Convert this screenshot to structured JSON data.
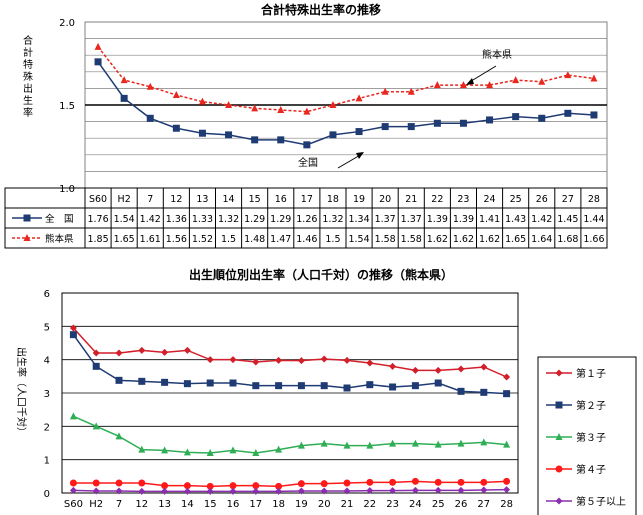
{
  "chart_data": [
    {
      "type": "line",
      "title": "合計特殊出生率の推移",
      "ylabel": "合計特殊出生率",
      "ylim": [
        1.0,
        2.0
      ],
      "yticks": [
        "1.0",
        "1.5",
        "2.0"
      ],
      "categories": [
        "S60",
        "H2",
        "7",
        "12",
        "13",
        "14",
        "15",
        "16",
        "17",
        "18",
        "19",
        "20",
        "21",
        "22",
        "23",
        "24",
        "25",
        "26",
        "27",
        "28"
      ],
      "series": [
        {
          "name": "全　国",
          "color": "#1f3b73",
          "style": "solid",
          "marker": "square",
          "values": [
            1.76,
            1.54,
            1.42,
            1.36,
            1.33,
            1.32,
            1.29,
            1.29,
            1.26,
            1.32,
            1.34,
            1.37,
            1.37,
            1.39,
            1.39,
            1.41,
            1.43,
            1.42,
            1.45,
            1.44
          ]
        },
        {
          "name": "熊本県",
          "color": "#e8271f",
          "style": "dashed",
          "marker": "triangle",
          "values": [
            1.85,
            1.65,
            1.61,
            1.56,
            1.52,
            1.5,
            1.48,
            1.47,
            1.46,
            1.5,
            1.54,
            1.58,
            1.58,
            1.62,
            1.62,
            1.62,
            1.65,
            1.64,
            1.68,
            1.66
          ]
        }
      ],
      "annotations": [
        "熊本県",
        "全国"
      ],
      "table": true,
      "grid": true
    },
    {
      "type": "line",
      "title": "出生順位別出生率（人口千対）の推移（熊本県）",
      "ylabel": "出生率（人口千対）",
      "ylim": [
        0,
        6
      ],
      "yticks": [
        "0",
        "1",
        "2",
        "3",
        "4",
        "5",
        "6"
      ],
      "categories": [
        "S60",
        "H2",
        "7",
        "12",
        "13",
        "14",
        "15",
        "16",
        "17",
        "18",
        "19",
        "20",
        "21",
        "22",
        "23",
        "24",
        "25",
        "26",
        "27",
        "28"
      ],
      "legend_position": "right",
      "series": [
        {
          "name": "第１子",
          "color": "#d21f2a",
          "marker": "diamond",
          "values": [
            4.95,
            4.2,
            4.2,
            4.28,
            4.22,
            4.28,
            4.0,
            4.0,
            3.93,
            3.98,
            3.97,
            4.02,
            3.98,
            3.9,
            3.8,
            3.68,
            3.68,
            3.72,
            3.78,
            3.48
          ]
        },
        {
          "name": "第２子",
          "color": "#1f3b73",
          "marker": "square",
          "values": [
            4.75,
            3.8,
            3.38,
            3.35,
            3.32,
            3.28,
            3.3,
            3.3,
            3.22,
            3.22,
            3.22,
            3.22,
            3.15,
            3.25,
            3.18,
            3.22,
            3.3,
            3.05,
            3.02,
            2.98
          ]
        },
        {
          "name": "第３子",
          "color": "#2fae55",
          "marker": "triangle",
          "values": [
            2.3,
            2.0,
            1.7,
            1.3,
            1.28,
            1.22,
            1.2,
            1.28,
            1.2,
            1.3,
            1.42,
            1.48,
            1.42,
            1.42,
            1.48,
            1.48,
            1.45,
            1.48,
            1.52,
            1.45
          ]
        },
        {
          "name": "第４子",
          "color": "#ff1a1a",
          "marker": "circle",
          "values": [
            0.3,
            0.3,
            0.3,
            0.3,
            0.22,
            0.22,
            0.2,
            0.22,
            0.22,
            0.2,
            0.28,
            0.28,
            0.3,
            0.32,
            0.32,
            0.35,
            0.32,
            0.32,
            0.32,
            0.35
          ]
        },
        {
          "name": "第５子以上",
          "color": "#8a2fae",
          "marker": "diamond",
          "values": [
            0.08,
            0.06,
            0.06,
            0.05,
            0.05,
            0.05,
            0.05,
            0.05,
            0.05,
            0.05,
            0.06,
            0.06,
            0.06,
            0.07,
            0.07,
            0.08,
            0.08,
            0.08,
            0.09,
            0.1
          ]
        }
      ],
      "grid": true
    }
  ]
}
